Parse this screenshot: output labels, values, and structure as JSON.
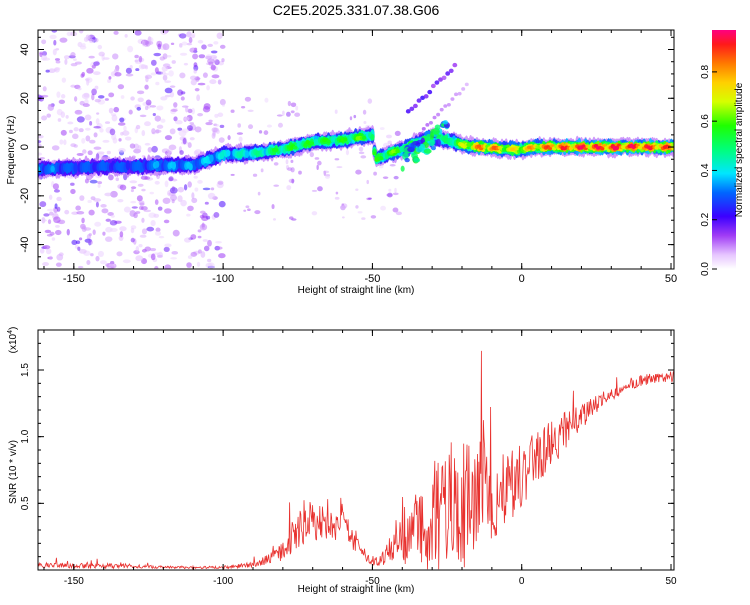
{
  "title": "C2E5.2025.331.07.38.G06",
  "chart_data": [
    {
      "type": "heatmap",
      "xlabel": "Height of straight line (km)",
      "ylabel": "Frequency (Hz)",
      "xlim": [
        -162,
        51
      ],
      "ylim": [
        -50,
        48
      ],
      "xticks": [
        "-150",
        "-100",
        "-50",
        "0",
        "50"
      ],
      "xtick_values": [
        -150,
        -100,
        -50,
        0,
        50
      ],
      "yticks": [
        "40",
        "20",
        "0",
        "-20",
        "-40"
      ],
      "ytick_values": [
        40,
        20,
        0,
        -20,
        -40
      ],
      "colorbar": {
        "label": "Normalized spectral amplitude",
        "range": [
          0,
          0.97
        ],
        "ticks": [
          "0.0",
          "0.2",
          "0.4",
          "0.6",
          "0.8"
        ],
        "tick_values": [
          0.0,
          0.2,
          0.4,
          0.6,
          0.8
        ]
      },
      "ridge": {
        "x": [
          -162,
          -150,
          -140,
          -130,
          -120,
          -110,
          -100,
          -90,
          -80,
          -70,
          -60,
          -55,
          -50,
          -49,
          -45,
          -40,
          -35,
          -30,
          -25,
          -20,
          -15,
          -10,
          -5,
          0,
          5,
          10,
          20,
          30,
          40,
          51
        ],
        "freq": [
          -9,
          -8.5,
          -8,
          -8,
          -7.5,
          -7.5,
          -3,
          -2.5,
          -1,
          2,
          3,
          4,
          4.5,
          -5,
          -3,
          -1,
          2,
          4,
          3,
          1,
          0,
          -0.5,
          -1,
          -1,
          0,
          0,
          0,
          0,
          0,
          0
        ],
        "amplitude": [
          0.35,
          0.3,
          0.3,
          0.3,
          0.35,
          0.35,
          0.4,
          0.45,
          0.55,
          0.55,
          0.55,
          0.6,
          0.55,
          0.55,
          0.6,
          0.6,
          0.5,
          0.45,
          0.5,
          0.65,
          0.8,
          0.85,
          0.7,
          0.75,
          0.8,
          0.85,
          0.9,
          0.9,
          0.9,
          0.85
        ]
      },
      "fringe": {
        "x": [
          -38,
          -34,
          -30,
          -26,
          -22
        ],
        "freq": [
          14,
          19,
          24,
          29,
          34
        ],
        "amplitude": [
          0.3,
          0.25,
          0.22,
          0.2,
          0.15
        ]
      }
    },
    {
      "type": "line",
      "xlabel": "Height of straight line (km)",
      "ylabel": "SNR (10 * v/v)",
      "yscale_label": "(x10",
      "yscale_exp": "4",
      "yscale_close": ")",
      "xlim": [
        -162,
        51
      ],
      "ylim": [
        0,
        1.8
      ],
      "xticks": [
        "-150",
        "-100",
        "-50",
        "0",
        "50"
      ],
      "xtick_values": [
        -150,
        -100,
        -50,
        0,
        50
      ],
      "yticks": [
        "0.5",
        "1.0",
        "1.5"
      ],
      "ytick_values": [
        0.5,
        1.0,
        1.5
      ],
      "series": [
        {
          "name": "SNR",
          "color": "#e8312e",
          "x": [
            -162,
            -150,
            -140,
            -130,
            -120,
            -110,
            -100,
            -90,
            -85,
            -80,
            -75,
            -70,
            -65,
            -60,
            -55,
            -52,
            -50,
            -48,
            -45,
            -40,
            -35,
            -30,
            -25,
            -20,
            -15,
            -13,
            -10,
            -5,
            0,
            5,
            10,
            15,
            20,
            25,
            30,
            35,
            40,
            45,
            51
          ],
          "y": [
            0.04,
            0.03,
            0.03,
            0.03,
            0.02,
            0.02,
            0.02,
            0.04,
            0.08,
            0.15,
            0.3,
            0.38,
            0.33,
            0.32,
            0.2,
            0.1,
            0.05,
            0.07,
            0.12,
            0.2,
            0.3,
            0.38,
            0.45,
            0.5,
            0.55,
            0.7,
            0.55,
            0.62,
            0.72,
            0.85,
            0.95,
            1.05,
            1.15,
            1.25,
            1.32,
            1.38,
            1.42,
            1.44,
            1.45
          ],
          "noise": [
            0.02,
            0.02,
            0.02,
            0.015,
            0.01,
            0.01,
            0.01,
            0.02,
            0.04,
            0.08,
            0.15,
            0.15,
            0.12,
            0.12,
            0.08,
            0.04,
            0.02,
            0.04,
            0.08,
            0.15,
            0.3,
            0.45,
            0.5,
            0.5,
            0.45,
            0.5,
            0.35,
            0.3,
            0.25,
            0.2,
            0.18,
            0.14,
            0.1,
            0.07,
            0.05,
            0.04,
            0.04,
            0.04,
            0.04
          ]
        }
      ]
    }
  ]
}
